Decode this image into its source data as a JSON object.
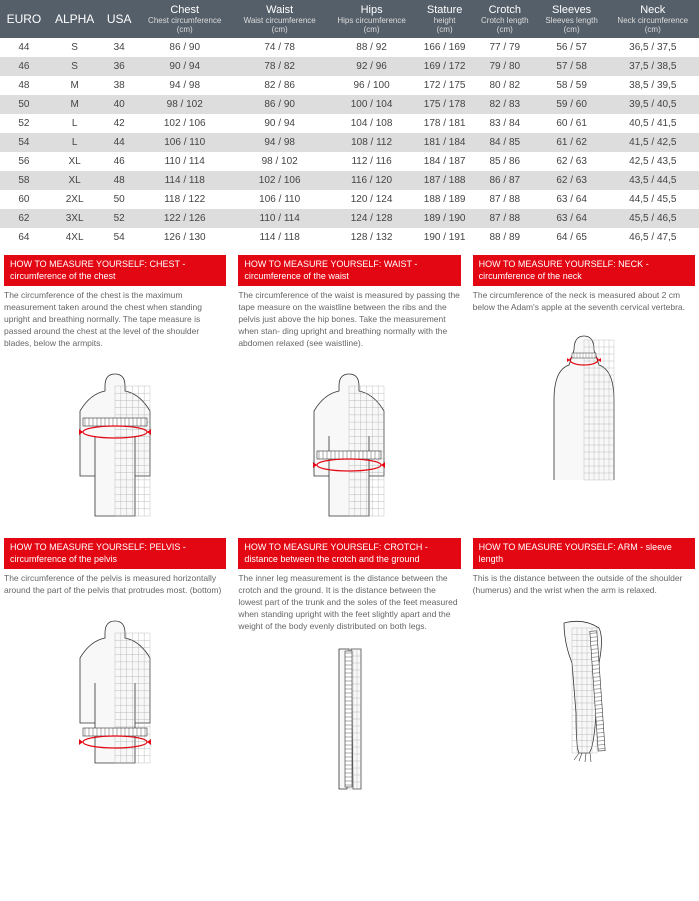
{
  "table": {
    "columns": [
      {
        "main": "EURO",
        "sub": null,
        "unit": null,
        "simple": true
      },
      {
        "main": "ALPHA",
        "sub": null,
        "unit": null,
        "simple": true
      },
      {
        "main": "USA",
        "sub": null,
        "unit": null,
        "simple": true
      },
      {
        "main": "Chest",
        "sub": "Chest circumference",
        "unit": "(cm)"
      },
      {
        "main": "Waist",
        "sub": "Waist circumference",
        "unit": "(cm)"
      },
      {
        "main": "Hips",
        "sub": "Hips circumference",
        "unit": "(cm)"
      },
      {
        "main": "Stature",
        "sub": "height",
        "unit": "(cm)"
      },
      {
        "main": "Crotch",
        "sub": "Crotch length",
        "unit": "(cm)"
      },
      {
        "main": "Sleeves",
        "sub": "Sleeves length",
        "unit": "(cm)"
      },
      {
        "main": "Neck",
        "sub": "Neck circumference",
        "unit": "(cm)"
      }
    ],
    "rows": [
      [
        "44",
        "S",
        "34",
        "86 / 90",
        "74 / 78",
        "88 / 92",
        "166 / 169",
        "77 / 79",
        "56 / 57",
        "36,5 / 37,5"
      ],
      [
        "46",
        "S",
        "36",
        "90 / 94",
        "78 / 82",
        "92 / 96",
        "169 / 172",
        "79 / 80",
        "57 / 58",
        "37,5 / 38,5"
      ],
      [
        "48",
        "M",
        "38",
        "94 / 98",
        "82 / 86",
        "96 / 100",
        "172 / 175",
        "80 / 82",
        "58 / 59",
        "38,5 / 39,5"
      ],
      [
        "50",
        "M",
        "40",
        "98 / 102",
        "86 / 90",
        "100 / 104",
        "175 / 178",
        "82 / 83",
        "59 / 60",
        "39,5 / 40,5"
      ],
      [
        "52",
        "L",
        "42",
        "102 / 106",
        "90 / 94",
        "104 / 108",
        "178 / 181",
        "83 / 84",
        "60 / 61",
        "40,5 / 41,5"
      ],
      [
        "54",
        "L",
        "44",
        "106 / 110",
        "94 / 98",
        "108 / 112",
        "181 / 184",
        "84 / 85",
        "61 / 62",
        "41,5 / 42,5"
      ],
      [
        "56",
        "XL",
        "46",
        "110 / 114",
        "98 / 102",
        "112 / 116",
        "184 / 187",
        "85 / 86",
        "62 / 63",
        "42,5 / 43,5"
      ],
      [
        "58",
        "XL",
        "48",
        "114 / 118",
        "102 / 106",
        "116 / 120",
        "187 / 188",
        "86 / 87",
        "62 / 63",
        "43,5 / 44,5"
      ],
      [
        "60",
        "2XL",
        "50",
        "118 / 122",
        "106 / 110",
        "120 / 124",
        "188 / 189",
        "87 / 88",
        "63 / 64",
        "44,5 / 45,5"
      ],
      [
        "62",
        "3XL",
        "52",
        "122 / 126",
        "110 / 114",
        "124 / 128",
        "189 / 190",
        "87 / 88",
        "63 / 64",
        "45,5 / 46,5"
      ],
      [
        "64",
        "4XL",
        "54",
        "126 / 130",
        "114 / 118",
        "128 / 132",
        "190 / 191",
        "88 / 89",
        "64 / 65",
        "46,5 / 47,5"
      ]
    ],
    "header_bg": "#555f6a",
    "row_alt_bg": "#ddd",
    "row_bg": "#fff"
  },
  "guides": [
    {
      "title": "HOW TO MEASURE YOURSELF: CHEST - circumference of the chest",
      "desc": "The circumference of the chest is the maximum measurement taken around the chest when standing upright and breathing normally. The tape measure is passed around the chest at the level of the shoulder blades, below the armpits.",
      "diagram": "chest"
    },
    {
      "title": "HOW TO MEASURE YOURSELF: WAIST - circumference of the waist",
      "desc": "The circumference of the waist is measured by passing the tape measure on the waistline between the ribs and the pelvis just above the hip bones. Take the measurement when stan- ding upright and breathing normally with the abdomen relaxed (see waistline).",
      "diagram": "waist"
    },
    {
      "title": "HOW TO MEASURE YOURSELF: NECK - circumference of the neck",
      "desc": "The circumference of the neck is measured about 2 cm below the Adam's apple at the seventh cervical vertebra.",
      "diagram": "neck"
    },
    {
      "title": "HOW TO MEASURE YOURSELF: PELVIS - circumference of the pelvis",
      "desc": "The circumference of the pelvis is measured horizontally around the part of the pelvis that protrudes most. (bottom)",
      "diagram": "pelvis"
    },
    {
      "title": "HOW TO MEASURE YOURSELF: CROTCH - distance between the crotch and the ground",
      "desc": "The inner leg measurement is the distance between the crotch and the ground. It is the distance between the lowest part of the trunk and the soles of the feet measured when standing upright with the feet slightly apart and the weight of the body evenly distributed on both legs.",
      "diagram": "crotch"
    },
    {
      "title": "HOW TO MEASURE YOURSELF: ARM - sleeve length",
      "desc": "This is the distance between the outside of the shoulder (humerus) and the wrist when the arm is relaxed.",
      "diagram": "arm"
    }
  ],
  "colors": {
    "red": "#e30613",
    "mesh": "#888",
    "outline": "#333"
  }
}
